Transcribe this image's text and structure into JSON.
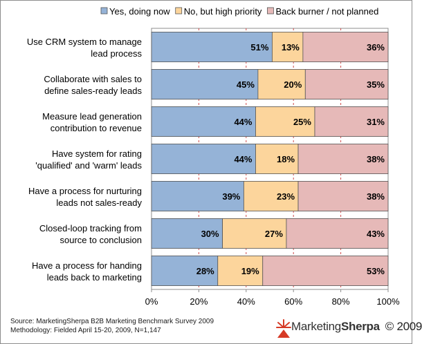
{
  "chart_data": {
    "type": "bar",
    "orientation": "horizontal",
    "stacked": "percent",
    "categories": [
      [
        "Use CRM system to manage",
        "lead process"
      ],
      [
        "Collaborate with sales to",
        "define sales-ready leads"
      ],
      [
        "Measure lead generation",
        "contribution to revenue"
      ],
      [
        "Have system for rating",
        "'qualified' and 'warm' leads"
      ],
      [
        "Have a process for nurturing",
        "leads not sales-ready"
      ],
      [
        "Closed-loop tracking from",
        "source to conclusion"
      ],
      [
        "Have a process for handing",
        "leads back to marketing"
      ]
    ],
    "series": [
      {
        "name": "Yes, doing now",
        "color": "#95b3d7",
        "values": [
          51,
          45,
          44,
          44,
          39,
          30,
          28
        ]
      },
      {
        "name": "No, but high priority",
        "color": "#fcd59c",
        "values": [
          13,
          20,
          25,
          18,
          23,
          27,
          19
        ]
      },
      {
        "name": "Back burner / not planned",
        "color": "#e6b9b8",
        "values": [
          36,
          35,
          31,
          38,
          38,
          43,
          53
        ]
      }
    ],
    "xlim": [
      0,
      100
    ],
    "x_ticks": [
      "0%",
      "20%",
      "40%",
      "60%",
      "80%",
      "100%"
    ],
    "grid": "vertical dashed",
    "legend_position": "top"
  },
  "footer": {
    "source_line": "Source: MarketingSherpa B2B Marketing Benchmark Survey 2009",
    "methodology_line": "Methodology: Fielded  April 15-20, 2009, N=1,147"
  },
  "logo": {
    "word1": "Marketing",
    "word2": "Sherpa",
    "copyright": "© 2009"
  }
}
